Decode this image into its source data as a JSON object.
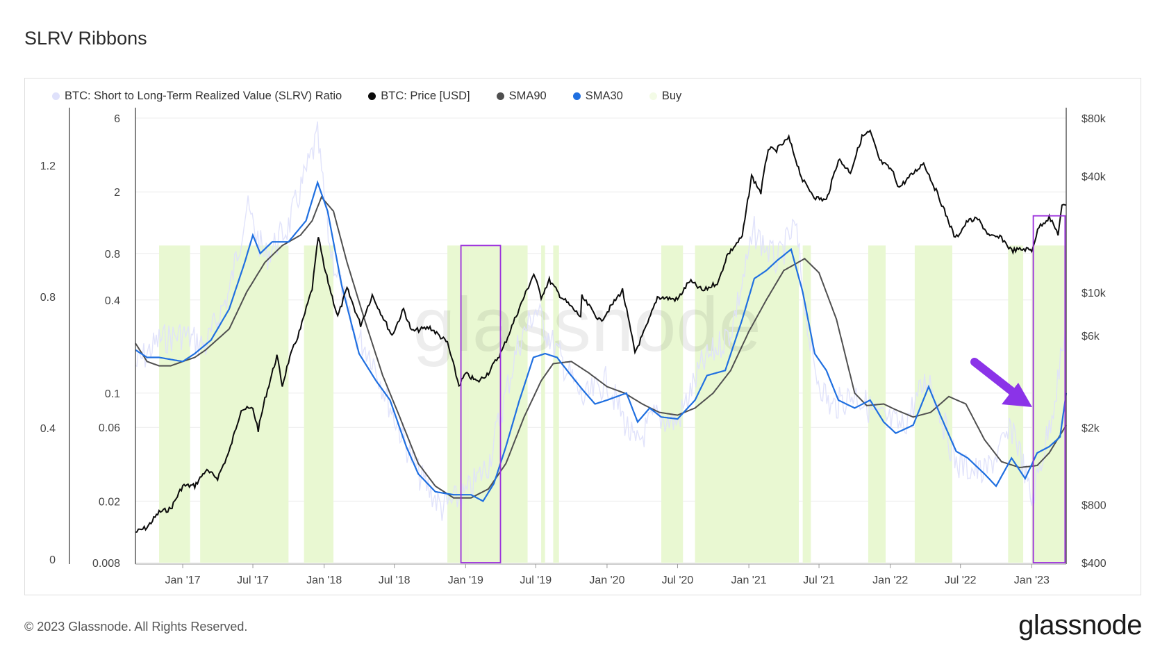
{
  "page": {
    "title": "SLRV Ribbons"
  },
  "footer": {
    "copyright": "© 2023 Glassnode. All Rights Reserved.",
    "brand": "glassnode"
  },
  "watermark": "glassnode",
  "colors": {
    "slrv": "#dfe1fb",
    "price": "#0b0b0b",
    "sma90": "#4f4f4f",
    "sma30": "#1f6fe0",
    "buy": "#e9f8d2",
    "highlight": "#9b2fdc",
    "arrow": "#8b33e8"
  },
  "chart_data": {
    "type": "line",
    "legend": [
      {
        "name": "BTC: Short to Long-Term Realized Value (SLRV) Ratio",
        "color": "#dfe1fb"
      },
      {
        "name": "BTC: Price [USD]",
        "color": "#0b0b0b"
      },
      {
        "name": "SMA90",
        "color": "#4f4f4f"
      },
      {
        "name": "SMA30",
        "color": "#1f6fe0"
      },
      {
        "name": "Buy",
        "color": "#f3fbe6"
      }
    ],
    "x_ticks": [
      "Jan '17",
      "Jul '17",
      "Jan '18",
      "Jul '18",
      "Jan '19",
      "Jul '19",
      "Jan '20",
      "Jul '20",
      "Jan '21",
      "Jul '21",
      "Jan '22",
      "Jul '22",
      "Jan '23"
    ],
    "x_range": [
      "2016-09-01",
      "2023-03-31"
    ],
    "left_axis_outer": {
      "ticks": [
        "1.2",
        "0.8",
        "0.4",
        "0"
      ]
    },
    "left_axis_inner": {
      "scale": "log",
      "ticks": [
        "6",
        "2",
        "0.8",
        "0.4",
        "0.1",
        "0.06",
        "0.02",
        "0.008"
      ],
      "range": [
        0.008,
        6
      ]
    },
    "right_axis": {
      "scale": "log",
      "ticks": [
        "$80k",
        "$40k",
        "$10k",
        "$6k",
        "$2k",
        "$800",
        "$400"
      ],
      "range": [
        400,
        80000
      ]
    },
    "buy_periods": [
      [
        "2016-11-01",
        "2017-01-20"
      ],
      [
        "2017-02-15",
        "2017-10-01"
      ],
      [
        "2017-11-10",
        "2018-01-25"
      ],
      [
        "2018-11-15",
        "2019-01-10"
      ],
      [
        "2019-01-10",
        "2019-06-10"
      ],
      [
        "2019-07-15",
        "2019-07-25"
      ],
      [
        "2019-08-15",
        "2019-08-30"
      ],
      [
        "2020-05-20",
        "2020-07-15"
      ],
      [
        "2020-08-15",
        "2021-05-10"
      ],
      [
        "2021-05-20",
        "2021-06-10"
      ],
      [
        "2021-11-05",
        "2021-12-20"
      ],
      [
        "2022-03-05",
        "2022-06-10"
      ],
      [
        "2022-11-01",
        "2022-12-10"
      ],
      [
        "2023-01-01",
        "2023-03-31"
      ]
    ],
    "highlight_boxes": [
      {
        "x": [
          "2018-12-20",
          "2019-04-01"
        ],
        "y": [
          0.008,
          0.9
        ]
      },
      {
        "x": [
          "2023-01-05",
          "2023-03-28"
        ],
        "y": [
          0.008,
          1.4
        ]
      }
    ],
    "price": {
      "name": "BTC: Price [USD]",
      "points": [
        [
          "2016-09-01",
          575
        ],
        [
          "2016-10-01",
          610
        ],
        [
          "2016-11-01",
          730
        ],
        [
          "2016-12-01",
          760
        ],
        [
          "2017-01-01",
          1000
        ],
        [
          "2017-02-01",
          1000
        ],
        [
          "2017-03-01",
          1200
        ],
        [
          "2017-04-01",
          1100
        ],
        [
          "2017-05-01",
          1500
        ],
        [
          "2017-06-01",
          2500
        ],
        [
          "2017-07-01",
          2500
        ],
        [
          "2017-07-15",
          1950
        ],
        [
          "2017-08-01",
          2800
        ],
        [
          "2017-09-01",
          4700
        ],
        [
          "2017-09-15",
          3300
        ],
        [
          "2017-10-01",
          4400
        ],
        [
          "2017-11-01",
          6500
        ],
        [
          "2017-12-01",
          10500
        ],
        [
          "2017-12-17",
          19500
        ],
        [
          "2018-01-01",
          13500
        ],
        [
          "2018-02-05",
          7500
        ],
        [
          "2018-03-01",
          10500
        ],
        [
          "2018-04-05",
          6800
        ],
        [
          "2018-05-05",
          9700
        ],
        [
          "2018-06-25",
          6000
        ],
        [
          "2018-07-25",
          8200
        ],
        [
          "2018-08-15",
          6300
        ],
        [
          "2018-10-01",
          6600
        ],
        [
          "2018-11-15",
          5500
        ],
        [
          "2018-12-15",
          3300
        ],
        [
          "2019-01-01",
          3800
        ],
        [
          "2019-02-01",
          3450
        ],
        [
          "2019-03-01",
          3850
        ],
        [
          "2019-04-05",
          5000
        ],
        [
          "2019-05-15",
          7900
        ],
        [
          "2019-06-26",
          12500
        ],
        [
          "2019-07-15",
          9500
        ],
        [
          "2019-08-05",
          11600
        ],
        [
          "2019-09-01",
          9700
        ],
        [
          "2019-10-25",
          7500
        ],
        [
          "2019-10-28",
          9500
        ],
        [
          "2019-12-15",
          7100
        ],
        [
          "2020-02-10",
          10300
        ],
        [
          "2020-03-13",
          4900
        ],
        [
          "2020-04-15",
          6900
        ],
        [
          "2020-05-10",
          9500
        ],
        [
          "2020-07-01",
          9200
        ],
        [
          "2020-08-01",
          11500
        ],
        [
          "2020-09-05",
          10200
        ],
        [
          "2020-10-15",
          11400
        ],
        [
          "2020-11-05",
          15500
        ],
        [
          "2020-12-15",
          19500
        ],
        [
          "2021-01-08",
          40000
        ],
        [
          "2021-02-01",
          33000
        ],
        [
          "2021-02-20",
          56000
        ],
        [
          "2021-03-10",
          54000
        ],
        [
          "2021-04-14",
          63000
        ],
        [
          "2021-05-20",
          38000
        ],
        [
          "2021-06-22",
          31000
        ],
        [
          "2021-07-20",
          30000
        ],
        [
          "2021-08-20",
          49000
        ],
        [
          "2021-09-20",
          42000
        ],
        [
          "2021-10-20",
          64000
        ],
        [
          "2021-11-10",
          68000
        ],
        [
          "2021-12-05",
          48000
        ],
        [
          "2022-01-05",
          43000
        ],
        [
          "2022-01-24",
          35000
        ],
        [
          "2022-03-28",
          47000
        ],
        [
          "2022-05-10",
          30000
        ],
        [
          "2022-06-18",
          19000
        ],
        [
          "2022-07-20",
          23500
        ],
        [
          "2022-08-15",
          24000
        ],
        [
          "2022-09-15",
          19500
        ],
        [
          "2022-10-15",
          19200
        ],
        [
          "2022-11-10",
          16500
        ],
        [
          "2022-12-15",
          16800
        ],
        [
          "2023-01-01",
          16600
        ],
        [
          "2023-01-20",
          22000
        ],
        [
          "2023-02-15",
          24500
        ],
        [
          "2023-03-10",
          20200
        ],
        [
          "2023-03-20",
          27800
        ],
        [
          "2023-03-31",
          28300
        ]
      ]
    },
    "sma90": {
      "name": "SMA90",
      "points": [
        [
          "2016-09-01",
          0.21
        ],
        [
          "2016-10-01",
          0.16
        ],
        [
          "2016-11-01",
          0.15
        ],
        [
          "2016-12-01",
          0.15
        ],
        [
          "2017-01-01",
          0.16
        ],
        [
          "2017-02-01",
          0.17
        ],
        [
          "2017-03-01",
          0.19
        ],
        [
          "2017-05-01",
          0.26
        ],
        [
          "2017-06-15",
          0.45
        ],
        [
          "2017-08-01",
          0.7
        ],
        [
          "2017-09-15",
          0.9
        ],
        [
          "2017-11-01",
          1.05
        ],
        [
          "2017-12-01",
          1.3
        ],
        [
          "2017-12-25",
          1.85
        ],
        [
          "2018-01-25",
          1.5
        ],
        [
          "2018-03-01",
          0.7
        ],
        [
          "2018-04-15",
          0.3
        ],
        [
          "2018-06-01",
          0.13
        ],
        [
          "2018-07-15",
          0.07
        ],
        [
          "2018-09-01",
          0.035
        ],
        [
          "2018-10-15",
          0.025
        ],
        [
          "2018-12-01",
          0.021
        ],
        [
          "2019-01-15",
          0.021
        ],
        [
          "2019-03-01",
          0.024
        ],
        [
          "2019-04-15",
          0.035
        ],
        [
          "2019-06-01",
          0.07
        ],
        [
          "2019-07-15",
          0.12
        ],
        [
          "2019-08-15",
          0.155
        ],
        [
          "2019-10-01",
          0.16
        ],
        [
          "2019-11-15",
          0.135
        ],
        [
          "2020-01-01",
          0.11
        ],
        [
          "2020-02-15",
          0.1
        ],
        [
          "2020-04-01",
          0.085
        ],
        [
          "2020-05-15",
          0.075
        ],
        [
          "2020-07-01",
          0.072
        ],
        [
          "2020-08-15",
          0.08
        ],
        [
          "2020-10-01",
          0.1
        ],
        [
          "2020-11-15",
          0.14
        ],
        [
          "2021-01-01",
          0.25
        ],
        [
          "2021-02-15",
          0.4
        ],
        [
          "2021-04-01",
          0.62
        ],
        [
          "2021-05-25",
          0.74
        ],
        [
          "2021-07-01",
          0.6
        ],
        [
          "2021-08-15",
          0.3
        ],
        [
          "2021-10-01",
          0.1
        ],
        [
          "2021-11-01",
          0.083
        ],
        [
          "2021-12-15",
          0.085
        ],
        [
          "2022-01-15",
          0.078
        ],
        [
          "2022-03-01",
          0.07
        ],
        [
          "2022-04-15",
          0.075
        ],
        [
          "2022-06-01",
          0.095
        ],
        [
          "2022-07-15",
          0.085
        ],
        [
          "2022-09-01",
          0.05
        ],
        [
          "2022-10-15",
          0.036
        ],
        [
          "2022-12-01",
          0.033
        ],
        [
          "2023-01-15",
          0.034
        ],
        [
          "2023-02-15",
          0.041
        ],
        [
          "2023-03-31",
          0.062
        ]
      ]
    },
    "sma30": {
      "name": "SMA30",
      "points": [
        [
          "2016-09-01",
          0.19
        ],
        [
          "2016-10-01",
          0.17
        ],
        [
          "2016-11-01",
          0.17
        ],
        [
          "2016-12-01",
          0.165
        ],
        [
          "2017-01-01",
          0.16
        ],
        [
          "2017-02-01",
          0.18
        ],
        [
          "2017-03-15",
          0.22
        ],
        [
          "2017-05-01",
          0.35
        ],
        [
          "2017-06-10",
          0.7
        ],
        [
          "2017-07-01",
          1.05
        ],
        [
          "2017-07-20",
          0.8
        ],
        [
          "2017-08-20",
          0.95
        ],
        [
          "2017-10-01",
          0.95
        ],
        [
          "2017-11-15",
          1.3
        ],
        [
          "2017-12-15",
          2.3
        ],
        [
          "2018-01-10",
          1.5
        ],
        [
          "2018-02-15",
          0.5
        ],
        [
          "2018-04-01",
          0.18
        ],
        [
          "2018-05-15",
          0.12
        ],
        [
          "2018-06-20",
          0.09
        ],
        [
          "2018-08-01",
          0.045
        ],
        [
          "2018-09-01",
          0.03
        ],
        [
          "2018-10-15",
          0.023
        ],
        [
          "2018-12-01",
          0.022
        ],
        [
          "2019-01-15",
          0.022
        ],
        [
          "2019-02-15",
          0.02
        ],
        [
          "2019-03-15",
          0.026
        ],
        [
          "2019-04-15",
          0.045
        ],
        [
          "2019-05-20",
          0.09
        ],
        [
          "2019-06-25",
          0.17
        ],
        [
          "2019-07-25",
          0.18
        ],
        [
          "2019-08-25",
          0.17
        ],
        [
          "2019-09-20",
          0.14
        ],
        [
          "2019-10-30",
          0.105
        ],
        [
          "2019-12-01",
          0.085
        ],
        [
          "2020-01-01",
          0.09
        ],
        [
          "2020-02-20",
          0.1
        ],
        [
          "2020-03-20",
          0.065
        ],
        [
          "2020-04-20",
          0.08
        ],
        [
          "2020-05-20",
          0.07
        ],
        [
          "2020-07-01",
          0.068
        ],
        [
          "2020-08-15",
          0.09
        ],
        [
          "2020-09-15",
          0.13
        ],
        [
          "2020-11-01",
          0.14
        ],
        [
          "2020-12-15",
          0.3
        ],
        [
          "2021-01-15",
          0.55
        ],
        [
          "2021-02-15",
          0.62
        ],
        [
          "2021-03-15",
          0.72
        ],
        [
          "2021-04-20",
          0.85
        ],
        [
          "2021-05-20",
          0.45
        ],
        [
          "2021-06-20",
          0.18
        ],
        [
          "2021-07-20",
          0.14
        ],
        [
          "2021-08-20",
          0.09
        ],
        [
          "2021-10-01",
          0.08
        ],
        [
          "2021-11-10",
          0.09
        ],
        [
          "2021-12-15",
          0.065
        ],
        [
          "2022-01-15",
          0.055
        ],
        [
          "2022-03-01",
          0.062
        ],
        [
          "2022-04-10",
          0.11
        ],
        [
          "2022-05-10",
          0.072
        ],
        [
          "2022-06-20",
          0.042
        ],
        [
          "2022-07-20",
          0.038
        ],
        [
          "2022-09-01",
          0.03
        ],
        [
          "2022-10-01",
          0.025
        ],
        [
          "2022-11-10",
          0.038
        ],
        [
          "2022-12-15",
          0.028
        ],
        [
          "2023-01-15",
          0.041
        ],
        [
          "2023-02-15",
          0.045
        ],
        [
          "2023-03-15",
          0.052
        ],
        [
          "2023-03-31",
          0.1
        ]
      ]
    },
    "slrv": {
      "name": "BTC: Short to Long-Term Realized Value (SLRV) Ratio",
      "points": [
        [
          "2016-09-01",
          0.15
        ],
        [
          "2016-11-01",
          0.22
        ],
        [
          "2017-01-01",
          0.24
        ],
        [
          "2017-03-01",
          0.2
        ],
        [
          "2017-05-01",
          0.45
        ],
        [
          "2017-06-15",
          1.6
        ],
        [
          "2017-08-01",
          0.75
        ],
        [
          "2017-10-01",
          1.2
        ],
        [
          "2017-12-15",
          4.5
        ],
        [
          "2018-01-15",
          0.9
        ],
        [
          "2018-03-15",
          0.25
        ],
        [
          "2018-05-01",
          0.18
        ],
        [
          "2018-07-01",
          0.07
        ],
        [
          "2018-09-01",
          0.03
        ],
        [
          "2018-11-01",
          0.018
        ],
        [
          "2019-01-01",
          0.022
        ],
        [
          "2019-03-01",
          0.035
        ],
        [
          "2019-05-15",
          0.2
        ],
        [
          "2019-07-01",
          0.35
        ],
        [
          "2019-09-01",
          0.17
        ],
        [
          "2019-11-01",
          0.09
        ],
        [
          "2020-01-01",
          0.12
        ],
        [
          "2020-03-15",
          0.045
        ],
        [
          "2020-05-01",
          0.07
        ],
        [
          "2020-07-01",
          0.065
        ],
        [
          "2020-09-01",
          0.15
        ],
        [
          "2020-11-15",
          0.25
        ],
        [
          "2021-01-15",
          1.1
        ],
        [
          "2021-03-15",
          0.7
        ],
        [
          "2021-05-01",
          1.2
        ],
        [
          "2021-06-15",
          0.15
        ],
        [
          "2021-08-01",
          0.08
        ],
        [
          "2021-10-01",
          0.1
        ],
        [
          "2021-12-01",
          0.07
        ],
        [
          "2022-02-01",
          0.06
        ],
        [
          "2022-04-10",
          0.13
        ],
        [
          "2022-06-20",
          0.035
        ],
        [
          "2022-09-01",
          0.03
        ],
        [
          "2022-11-15",
          0.06
        ],
        [
          "2023-01-01",
          0.02
        ],
        [
          "2023-02-15",
          0.06
        ],
        [
          "2023-03-31",
          0.25
        ]
      ]
    }
  }
}
